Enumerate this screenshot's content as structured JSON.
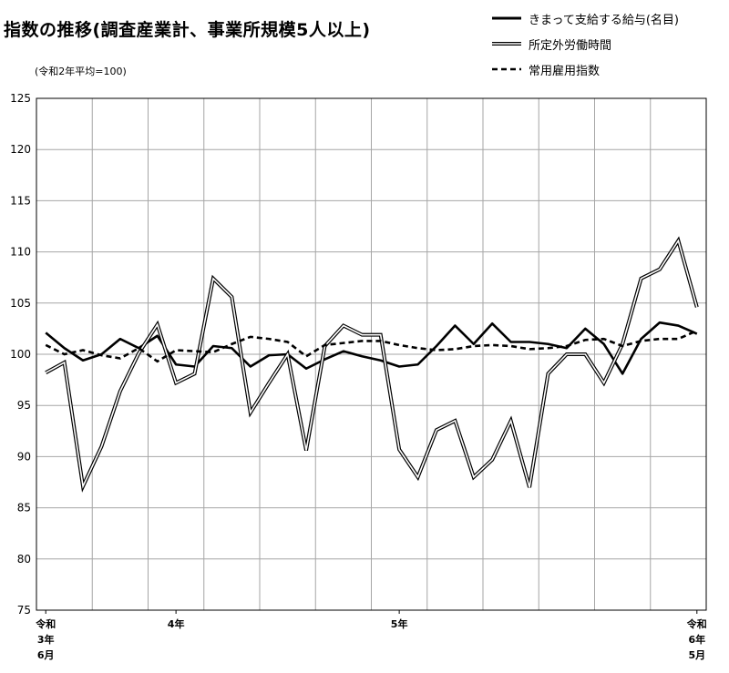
{
  "title": "指数の推移(調査産業計、事業所規模5人以上)",
  "subtitle": "(令和2年平均=100)",
  "colors": {
    "grid": "#a6a6a6",
    "axis": "#000000",
    "background": "#ffffff"
  },
  "chart_data": {
    "type": "line",
    "title": "指数の推移(調査産業計、事業所規模5人以上)",
    "subtitle": "(令和2年平均=100)",
    "xlabel": "",
    "ylabel": "",
    "ylim": [
      75,
      125
    ],
    "yticks": [
      75,
      80,
      85,
      90,
      95,
      100,
      105,
      110,
      115,
      120,
      125
    ],
    "grid": true,
    "legend_position": "top-right",
    "x_tick_labels": [
      {
        "index": 0,
        "lines": [
          "令和",
          "3年",
          "6月"
        ]
      },
      {
        "index": 7,
        "lines": [
          "4年"
        ]
      },
      {
        "index": 19,
        "lines": [
          "5年"
        ]
      },
      {
        "index": 35,
        "lines": [
          "令和",
          "6年",
          "5月"
        ]
      }
    ],
    "n_points": 36,
    "series": [
      {
        "name": "きまって支給する給与(名目)",
        "style": "solid",
        "color": "#000000",
        "values": [
          102.1,
          100.6,
          99.4,
          100.0,
          101.5,
          100.6,
          101.8,
          99.0,
          98.8,
          100.8,
          100.6,
          98.8,
          99.9,
          100.0,
          98.6,
          99.5,
          100.3,
          99.8,
          99.4,
          98.8,
          99.0,
          100.8,
          102.8,
          101.0,
          103.0,
          101.2,
          101.2,
          101.0,
          100.6,
          102.5,
          101.0,
          98.1,
          101.5,
          103.1,
          102.8,
          102.0
        ]
      },
      {
        "name": "所定外労働時間",
        "style": "double",
        "color": "#000000",
        "values": [
          98.2,
          99.2,
          87.1,
          91.0,
          96.4,
          100.1,
          102.9,
          97.2,
          98.1,
          107.4,
          105.6,
          94.3,
          97.2,
          100.0,
          90.6,
          100.8,
          102.8,
          101.9,
          101.9,
          90.7,
          88.0,
          92.6,
          93.5,
          88.0,
          89.7,
          93.5,
          87.0,
          98.1,
          100.0,
          100.0,
          97.2,
          101.0,
          107.4,
          108.3,
          111.1,
          104.6
        ]
      },
      {
        "name": "常用雇用指数",
        "style": "dashed",
        "color": "#000000",
        "values": [
          100.9,
          100.0,
          100.4,
          99.9,
          99.6,
          100.6,
          99.3,
          100.4,
          100.3,
          100.2,
          101.0,
          101.7,
          101.5,
          101.2,
          99.8,
          100.9,
          101.1,
          101.3,
          101.3,
          100.9,
          100.6,
          100.4,
          100.5,
          100.8,
          100.9,
          100.8,
          100.5,
          100.6,
          100.8,
          101.4,
          101.5,
          100.8,
          101.3,
          101.5,
          101.5,
          102.3
        ]
      }
    ]
  }
}
